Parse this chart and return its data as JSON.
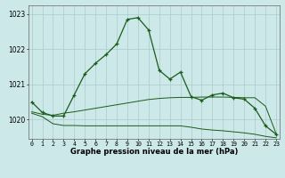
{
  "hours": [
    0,
    1,
    2,
    3,
    4,
    5,
    6,
    7,
    8,
    9,
    10,
    11,
    12,
    13,
    14,
    15,
    16,
    17,
    18,
    19,
    20,
    21,
    22,
    23
  ],
  "main_line": [
    1020.5,
    1020.2,
    1020.1,
    1020.1,
    1020.7,
    1021.3,
    1021.6,
    1021.85,
    1022.15,
    1022.85,
    1022.9,
    1022.55,
    1021.4,
    1021.15,
    1021.35,
    1020.65,
    1020.55,
    1020.7,
    1020.75,
    1020.62,
    1020.58,
    1020.32,
    1019.82,
    1019.58
  ],
  "upper_band": [
    1020.22,
    1020.15,
    1020.12,
    1020.18,
    1020.22,
    1020.27,
    1020.32,
    1020.37,
    1020.42,
    1020.47,
    1020.52,
    1020.57,
    1020.6,
    1020.62,
    1020.63,
    1020.63,
    1020.64,
    1020.64,
    1020.64,
    1020.63,
    1020.62,
    1020.62,
    1020.38,
    1019.6
  ],
  "lower_band": [
    1020.18,
    1020.08,
    1019.88,
    1019.83,
    1019.83,
    1019.82,
    1019.82,
    1019.82,
    1019.82,
    1019.82,
    1019.82,
    1019.82,
    1019.82,
    1019.82,
    1019.82,
    1019.78,
    1019.73,
    1019.7,
    1019.68,
    1019.65,
    1019.62,
    1019.58,
    1019.52,
    1019.48
  ],
  "ylim_min": 1019.45,
  "ylim_max": 1023.25,
  "yticks": [
    1020,
    1021,
    1022,
    1023
  ],
  "bg_color": "#cce8e8",
  "line_color": "#1a5c1a",
  "grid_color": "#aacccc",
  "xlabel": "Graphe pression niveau de la mer (hPa)"
}
